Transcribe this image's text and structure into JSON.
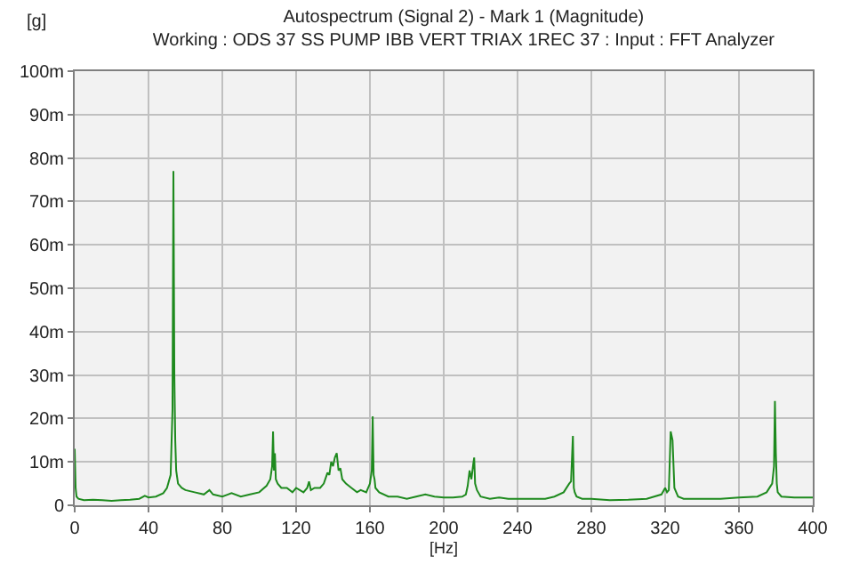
{
  "chart_data": {
    "type": "line",
    "title": "Autospectrum (Signal 2) - Mark 1 (Magnitude)",
    "subtitle": "Working : ODS 37 SS PUMP IBB VERT TRIAX 1REC 37 : Input : FFT Analyzer",
    "ylabel": "[g]",
    "xlabel": "[Hz]",
    "x": [
      0,
      0.5,
      1,
      2,
      5,
      10,
      15,
      20,
      25,
      30,
      35,
      38,
      40,
      44,
      48,
      50,
      52,
      53,
      53.5,
      54,
      54.5,
      55,
      56,
      58,
      60,
      65,
      70,
      73,
      75,
      80,
      85,
      90,
      95,
      100,
      104,
      106,
      107,
      107.5,
      108,
      108.5,
      109,
      110,
      112,
      115,
      118,
      120,
      124,
      126,
      127,
      128,
      130,
      133,
      135,
      137,
      138,
      139,
      140,
      141,
      142,
      143,
      144,
      145,
      147,
      150,
      153,
      155,
      158,
      160,
      161,
      161.5,
      162,
      162.5,
      163,
      165,
      170,
      175,
      180,
      185,
      190,
      195,
      200,
      205,
      210,
      212,
      213,
      214,
      215,
      216,
      216.5,
      217,
      218,
      220,
      225,
      230,
      235,
      240,
      245,
      250,
      255,
      260,
      265,
      268,
      269,
      270,
      270.5,
      271,
      272,
      275,
      280,
      290,
      300,
      310,
      318,
      320,
      321,
      322,
      323,
      324,
      325,
      326,
      327,
      330,
      340,
      350,
      360,
      370,
      375,
      378,
      379,
      379.5,
      380,
      380.5,
      381,
      383,
      390,
      400
    ],
    "series": [
      {
        "color": "#1e8a1e",
        "values": [
          13,
          4,
          2,
          1.5,
          1.2,
          1.3,
          1.2,
          1,
          1.2,
          1.3,
          1.5,
          2.2,
          1.8,
          2,
          2.8,
          4,
          7,
          22,
          77,
          30,
          15,
          8,
          5,
          4,
          3.5,
          3,
          2.5,
          3.5,
          2.5,
          2,
          2.8,
          2,
          2.5,
          3,
          4.5,
          6,
          9,
          17,
          8,
          12,
          6,
          5,
          4,
          4,
          3,
          4,
          3,
          4,
          5.5,
          3.5,
          4,
          4,
          5,
          7.5,
          7,
          10,
          9,
          11,
          12,
          8,
          8.5,
          6,
          5,
          4,
          3,
          3.5,
          3,
          5,
          8,
          20.5,
          7,
          6,
          4,
          3,
          2,
          2,
          1.5,
          2,
          2.5,
          2,
          1.8,
          1.8,
          2,
          2.5,
          4.5,
          8,
          6,
          9.5,
          11,
          5,
          3.5,
          2,
          1.5,
          1.8,
          1.5,
          1.5,
          1.5,
          1.5,
          1.5,
          2,
          3,
          5,
          5.5,
          16,
          4,
          3,
          2,
          1.5,
          1.5,
          1.2,
          1.3,
          1.5,
          2.5,
          4,
          3,
          3.5,
          17,
          15,
          4,
          3,
          2,
          1.5,
          1.5,
          1.5,
          1.8,
          2,
          3,
          5,
          9,
          24,
          12,
          5,
          3,
          2,
          1.8,
          1.8
        ]
      }
    ],
    "xlim": [
      0,
      400
    ],
    "xticks": [
      0,
      40,
      80,
      120,
      160,
      200,
      240,
      280,
      320,
      360,
      400
    ],
    "ylim": [
      0,
      100
    ],
    "yticks": [
      0,
      {
        "value": 10,
        "label": "10m"
      },
      {
        "value": 20,
        "label": "20m"
      },
      {
        "value": 30,
        "label": "30m"
      },
      {
        "value": 40,
        "label": "40m"
      },
      {
        "value": 50,
        "label": "50m"
      },
      {
        "value": 60,
        "label": "60m"
      },
      {
        "value": 70,
        "label": "70m"
      },
      {
        "value": 80,
        "label": "80m"
      },
      {
        "value": 90,
        "label": "90m"
      },
      {
        "value": 100,
        "label": "100m"
      }
    ],
    "grid": true,
    "marker": "none",
    "line_style": "solid"
  }
}
